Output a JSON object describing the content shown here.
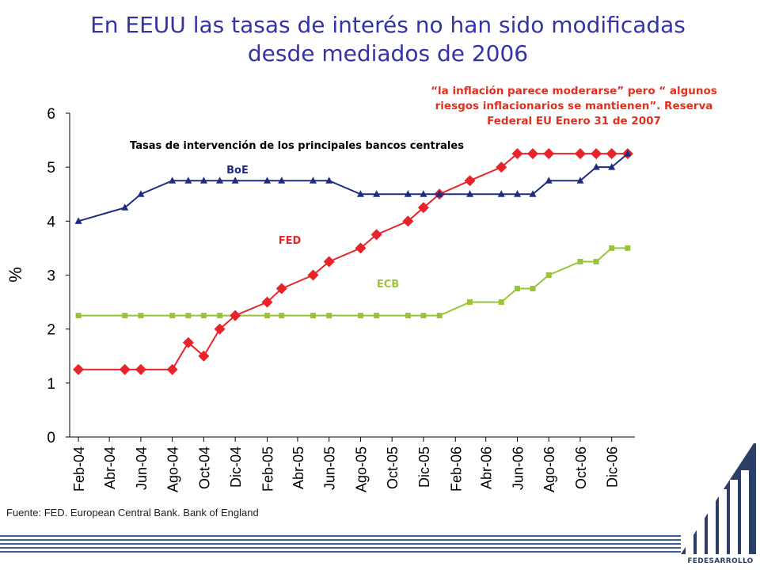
{
  "slide": {
    "title_line1": "En EEUU las tasas de interés no han sido modificadas",
    "title_line2": "desde mediados de 2006",
    "quote_line1": "“la inflación parece moderarse” pero “ algunos",
    "quote_line2": "riesgos inflacionarios se mantienen”. Reserva",
    "quote_line3": "Federal EU  Enero 31 de 2007",
    "source": "Fuente: FED. European Central Bank. Bank of England",
    "logo_text": "FEDESARROLLO"
  },
  "colors": {
    "title": "#3333a6",
    "quote": "#e0301e",
    "boe": "#1f2d80",
    "fed": "#e8232a",
    "ecb": "#99c43a"
  },
  "chart_data": {
    "type": "line",
    "title": "Tasas de intervención  de los principales bancos centrales",
    "xlabel": "",
    "ylabel": "%",
    "ylim": [
      0,
      6
    ],
    "yticks": [
      0,
      1,
      2,
      3,
      4,
      5,
      6
    ],
    "grid": false,
    "xaxis_start": "2004-01-15",
    "xaxis_end": "2007-01-15",
    "xtick_labels": [
      {
        "date": "2004-02-01",
        "label": "Feb-04"
      },
      {
        "date": "2004-04-01",
        "label": "Abr-04"
      },
      {
        "date": "2004-06-01",
        "label": "Jun-04"
      },
      {
        "date": "2004-08-01",
        "label": "Ago-04"
      },
      {
        "date": "2004-10-01",
        "label": "Oct-04"
      },
      {
        "date": "2004-12-01",
        "label": "Dic-04"
      },
      {
        "date": "2005-02-01",
        "label": "Feb-05"
      },
      {
        "date": "2005-04-01",
        "label": "Abr-05"
      },
      {
        "date": "2005-06-01",
        "label": "Jun-05"
      },
      {
        "date": "2005-08-01",
        "label": "Ago-05"
      },
      {
        "date": "2005-10-01",
        "label": "Oct-05"
      },
      {
        "date": "2005-12-01",
        "label": "Dic-05"
      },
      {
        "date": "2006-02-01",
        "label": "Feb-06"
      },
      {
        "date": "2006-04-01",
        "label": "Abr-06"
      },
      {
        "date": "2006-06-01",
        "label": "Jun-06"
      },
      {
        "date": "2006-08-01",
        "label": "Ago-06"
      },
      {
        "date": "2006-10-01",
        "label": "Oct-06"
      },
      {
        "date": "2006-12-01",
        "label": "Dic-06"
      }
    ],
    "series": [
      {
        "name": "BoE",
        "color": "#1f2d80",
        "marker": "triangle",
        "points": [
          [
            "2004-02-01",
            4.0
          ],
          [
            "2004-05-01",
            4.25
          ],
          [
            "2004-06-01",
            4.5
          ],
          [
            "2004-08-01",
            4.75
          ],
          [
            "2004-09-01",
            4.75
          ],
          [
            "2004-10-01",
            4.75
          ],
          [
            "2004-11-01",
            4.75
          ],
          [
            "2004-12-01",
            4.75
          ],
          [
            "2005-02-01",
            4.75
          ],
          [
            "2005-03-01",
            4.75
          ],
          [
            "2005-05-01",
            4.75
          ],
          [
            "2005-06-01",
            4.75
          ],
          [
            "2005-08-01",
            4.5
          ],
          [
            "2005-09-01",
            4.5
          ],
          [
            "2005-11-01",
            4.5
          ],
          [
            "2005-12-01",
            4.5
          ],
          [
            "2006-01-01",
            4.5
          ],
          [
            "2006-03-01",
            4.5
          ],
          [
            "2006-05-01",
            4.5
          ],
          [
            "2006-06-01",
            4.5
          ],
          [
            "2006-07-01",
            4.5
          ],
          [
            "2006-08-01",
            4.75
          ],
          [
            "2006-10-01",
            4.75
          ],
          [
            "2006-11-01",
            5.0
          ],
          [
            "2006-12-01",
            5.0
          ],
          [
            "2007-01-01",
            5.25
          ]
        ]
      },
      {
        "name": "FED",
        "color": "#e8232a",
        "marker": "diamond",
        "points": [
          [
            "2004-02-01",
            1.25
          ],
          [
            "2004-05-01",
            1.25
          ],
          [
            "2004-06-01",
            1.25
          ],
          [
            "2004-08-01",
            1.25
          ],
          [
            "2004-09-01",
            1.75
          ],
          [
            "2004-10-01",
            1.5
          ],
          [
            "2004-11-01",
            2.0
          ],
          [
            "2004-12-01",
            2.25
          ],
          [
            "2005-02-01",
            2.5
          ],
          [
            "2005-03-01",
            2.75
          ],
          [
            "2005-05-01",
            3.0
          ],
          [
            "2005-06-01",
            3.25
          ],
          [
            "2005-08-01",
            3.5
          ],
          [
            "2005-09-01",
            3.75
          ],
          [
            "2005-11-01",
            4.0
          ],
          [
            "2005-12-01",
            4.25
          ],
          [
            "2006-01-01",
            4.5
          ],
          [
            "2006-03-01",
            4.75
          ],
          [
            "2006-05-01",
            5.0
          ],
          [
            "2006-06-01",
            5.25
          ],
          [
            "2006-07-01",
            5.25
          ],
          [
            "2006-08-01",
            5.25
          ],
          [
            "2006-10-01",
            5.25
          ],
          [
            "2006-11-01",
            5.25
          ],
          [
            "2006-12-01",
            5.25
          ],
          [
            "2007-01-01",
            5.25
          ]
        ]
      },
      {
        "name": "ECB",
        "color": "#99c43a",
        "marker": "square",
        "points": [
          [
            "2004-02-01",
            2.25
          ],
          [
            "2004-05-01",
            2.25
          ],
          [
            "2004-06-01",
            2.25
          ],
          [
            "2004-08-01",
            2.25
          ],
          [
            "2004-09-01",
            2.25
          ],
          [
            "2004-10-01",
            2.25
          ],
          [
            "2004-11-01",
            2.25
          ],
          [
            "2004-12-01",
            2.25
          ],
          [
            "2005-02-01",
            2.25
          ],
          [
            "2005-03-01",
            2.25
          ],
          [
            "2005-05-01",
            2.25
          ],
          [
            "2005-06-01",
            2.25
          ],
          [
            "2005-08-01",
            2.25
          ],
          [
            "2005-09-01",
            2.25
          ],
          [
            "2005-11-01",
            2.25
          ],
          [
            "2005-12-01",
            2.25
          ],
          [
            "2006-01-01",
            2.25
          ],
          [
            "2006-03-01",
            2.5
          ],
          [
            "2006-05-01",
            2.5
          ],
          [
            "2006-06-01",
            2.75
          ],
          [
            "2006-07-01",
            2.75
          ],
          [
            "2006-08-01",
            3.0
          ],
          [
            "2006-10-01",
            3.25
          ],
          [
            "2006-11-01",
            3.25
          ],
          [
            "2006-12-01",
            3.5
          ],
          [
            "2007-01-01",
            3.5
          ]
        ]
      }
    ]
  }
}
